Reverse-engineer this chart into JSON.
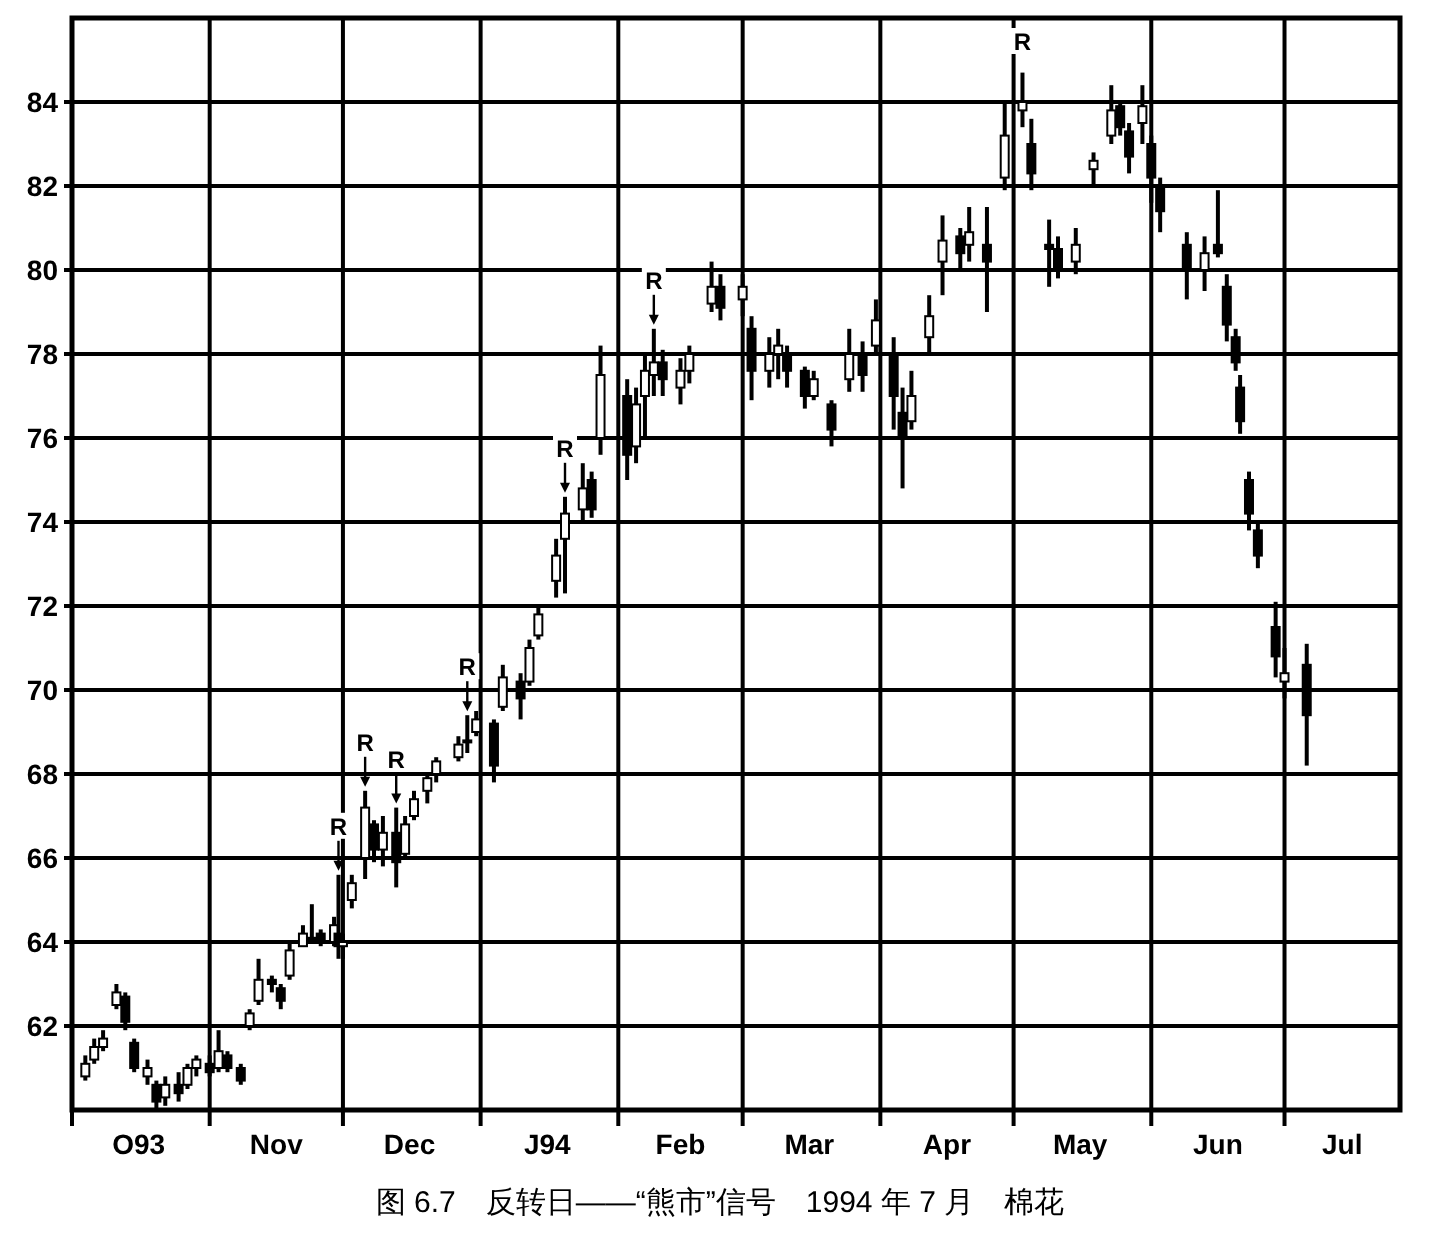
{
  "chart_data": {
    "type": "candlestick",
    "ylim": [
      60,
      86
    ],
    "yticks": [
      62,
      64,
      66,
      68,
      70,
      72,
      74,
      76,
      78,
      80,
      82,
      84
    ],
    "xlim": [
      "1993-10-01",
      "1994-07-27"
    ],
    "xticks": [
      {
        "value": "1993-10-01",
        "label": null
      },
      {
        "value": "1993-10-16",
        "label": "O93"
      },
      {
        "value": "1993-11-01",
        "label": null
      },
      {
        "value": "1993-11-16",
        "label": "Nov"
      },
      {
        "value": "1993-12-01",
        "label": null
      },
      {
        "value": "1993-12-16",
        "label": "Dec"
      },
      {
        "value": "1994-01-01",
        "label": null
      },
      {
        "value": "1994-01-16",
        "label": "J94"
      },
      {
        "value": "1994-02-01",
        "label": null
      },
      {
        "value": "1994-02-15",
        "label": "Feb"
      },
      {
        "value": "1994-03-01",
        "label": null
      },
      {
        "value": "1994-03-16",
        "label": "Mar"
      },
      {
        "value": "1994-04-01",
        "label": null
      },
      {
        "value": "1994-04-16",
        "label": "Apr"
      },
      {
        "value": "1994-05-01",
        "label": null
      },
      {
        "value": "1994-05-16",
        "label": "May"
      },
      {
        "value": "1994-06-01",
        "label": null
      },
      {
        "value": "1994-06-16",
        "label": "Jun"
      },
      {
        "value": "1994-07-01",
        "label": null
      },
      {
        "value": "1994-07-14",
        "label": "Jul"
      }
    ],
    "grid": true,
    "color": "#000000",
    "x": [
      "1993-10-04",
      "1993-10-06",
      "1993-10-08",
      "1993-10-11",
      "1993-10-13",
      "1993-10-15",
      "1993-10-18",
      "1993-10-20",
      "1993-10-22",
      "1993-10-25",
      "1993-10-27",
      "1993-10-29",
      "1993-11-01",
      "1993-11-03",
      "1993-11-05",
      "1993-11-08",
      "1993-11-10",
      "1993-11-12",
      "1993-11-15",
      "1993-11-17",
      "1993-11-19",
      "1993-11-22",
      "1993-11-24",
      "1993-11-26",
      "1993-11-29",
      "1993-11-30",
      "1993-12-01",
      "1993-12-03",
      "1993-12-06",
      "1993-12-08",
      "1993-12-10",
      "1993-12-13",
      "1993-12-15",
      "1993-12-17",
      "1993-12-20",
      "1993-12-22",
      "1993-12-27",
      "1993-12-29",
      "1993-12-31",
      "1994-01-04",
      "1994-01-06",
      "1994-01-10",
      "1994-01-12",
      "1994-01-14",
      "1994-01-18",
      "1994-01-20",
      "1994-01-24",
      "1994-01-26",
      "1994-01-28",
      "1994-02-03",
      "1994-02-05",
      "1994-02-07",
      "1994-02-09",
      "1994-02-11",
      "1994-02-15",
      "1994-02-17",
      "1994-02-22",
      "1994-02-24",
      "1994-03-01",
      "1994-03-03",
      "1994-03-07",
      "1994-03-09",
      "1994-03-11",
      "1994-03-15",
      "1994-03-17",
      "1994-03-21",
      "1994-03-25",
      "1994-03-28",
      "1994-03-31",
      "1994-04-04",
      "1994-04-06",
      "1994-04-08",
      "1994-04-12",
      "1994-04-15",
      "1994-04-19",
      "1994-04-21",
      "1994-04-25",
      "1994-04-29",
      "1994-05-03",
      "1994-05-05",
      "1994-05-09",
      "1994-05-11",
      "1994-05-15",
      "1994-05-19",
      "1994-05-23",
      "1994-05-25",
      "1994-05-27",
      "1994-05-30",
      "1994-06-01",
      "1994-06-03",
      "1994-06-09",
      "1994-06-13",
      "1994-06-16",
      "1994-06-18",
      "1994-06-20",
      "1994-06-21",
      "1994-06-23",
      "1994-06-25",
      "1994-06-29",
      "1994-07-01",
      "1994-07-06"
    ],
    "ohlc": [
      [
        60.8,
        61.3,
        60.7,
        61.1
      ],
      [
        61.2,
        61.7,
        61.1,
        61.5
      ],
      [
        61.5,
        61.9,
        61.4,
        61.7
      ],
      [
        62.5,
        63.0,
        62.4,
        62.8
      ],
      [
        62.7,
        62.8,
        61.9,
        62.1
      ],
      [
        61.6,
        61.7,
        60.9,
        61.0
      ],
      [
        60.8,
        61.2,
        60.6,
        61.0
      ],
      [
        60.6,
        60.7,
        60.0,
        60.2
      ],
      [
        60.3,
        60.8,
        60.1,
        60.6
      ],
      [
        60.6,
        60.9,
        60.2,
        60.4
      ],
      [
        60.6,
        61.1,
        60.5,
        61.0
      ],
      [
        61.0,
        61.3,
        60.8,
        61.2
      ],
      [
        61.1,
        61.3,
        60.8,
        60.9
      ],
      [
        61.0,
        61.9,
        60.9,
        61.4
      ],
      [
        61.3,
        61.4,
        60.9,
        61.0
      ],
      [
        61.0,
        61.1,
        60.6,
        60.7
      ],
      [
        62.0,
        62.4,
        61.9,
        62.3
      ],
      [
        62.6,
        63.6,
        62.5,
        63.1
      ],
      [
        63.1,
        63.2,
        62.8,
        63.0
      ],
      [
        62.9,
        63.0,
        62.4,
        62.6
      ],
      [
        63.2,
        64.0,
        63.1,
        63.8
      ],
      [
        63.9,
        64.4,
        63.9,
        64.2
      ],
      [
        64.1,
        64.9,
        64.0,
        64.1
      ],
      [
        64.2,
        64.3,
        63.9,
        64.0
      ],
      [
        64.0,
        64.6,
        63.9,
        64.4
      ],
      [
        64.2,
        65.6,
        63.6,
        63.9
      ],
      [
        63.9,
        64.2,
        63.6,
        64.0
      ],
      [
        65.0,
        65.6,
        64.8,
        65.4
      ],
      [
        66.0,
        67.6,
        65.5,
        67.2
      ],
      [
        66.8,
        66.9,
        65.9,
        66.2
      ],
      [
        66.2,
        67.0,
        65.8,
        66.6
      ],
      [
        66.6,
        67.2,
        65.3,
        65.9
      ],
      [
        66.1,
        67.0,
        66.0,
        66.8
      ],
      [
        67.0,
        67.6,
        66.9,
        67.4
      ],
      [
        67.6,
        68.0,
        67.3,
        67.9
      ],
      [
        68.0,
        68.4,
        67.8,
        68.3
      ],
      [
        68.4,
        68.9,
        68.3,
        68.7
      ],
      [
        68.8,
        69.4,
        68.5,
        68.8
      ],
      [
        69.0,
        69.5,
        68.9,
        69.3
      ],
      [
        69.2,
        69.3,
        67.8,
        68.2
      ],
      [
        69.6,
        70.6,
        69.5,
        70.3
      ],
      [
        70.2,
        70.4,
        69.3,
        69.8
      ],
      [
        70.2,
        71.2,
        70.1,
        71.0
      ],
      [
        71.3,
        72.0,
        71.2,
        71.8
      ],
      [
        72.6,
        73.6,
        72.2,
        73.2
      ],
      [
        73.6,
        74.6,
        72.3,
        74.2
      ],
      [
        74.3,
        75.4,
        74.0,
        74.8
      ],
      [
        75.0,
        75.2,
        74.1,
        74.3
      ],
      [
        76.0,
        78.2,
        75.6,
        77.5
      ],
      [
        77.0,
        77.4,
        75.0,
        75.6
      ],
      [
        75.8,
        77.2,
        75.4,
        76.8
      ],
      [
        77.0,
        78.0,
        76.0,
        77.6
      ],
      [
        77.5,
        78.6,
        77.0,
        77.8
      ],
      [
        77.8,
        78.1,
        77.0,
        77.4
      ],
      [
        77.2,
        77.9,
        76.8,
        77.6
      ],
      [
        77.6,
        78.2,
        77.3,
        78.0
      ],
      [
        79.2,
        80.2,
        79.0,
        79.6
      ],
      [
        79.6,
        79.9,
        78.8,
        79.1
      ],
      [
        79.3,
        79.9,
        78.9,
        79.6
      ],
      [
        78.6,
        78.9,
        76.9,
        77.6
      ],
      [
        77.6,
        78.4,
        77.2,
        78.0
      ],
      [
        78.0,
        78.6,
        77.4,
        78.2
      ],
      [
        78.0,
        78.2,
        77.2,
        77.6
      ],
      [
        77.6,
        77.7,
        76.7,
        77.0
      ],
      [
        77.0,
        77.6,
        76.9,
        77.4
      ],
      [
        76.8,
        76.9,
        75.8,
        76.2
      ],
      [
        77.4,
        78.6,
        77.1,
        78.0
      ],
      [
        78.0,
        78.3,
        77.1,
        77.5
      ],
      [
        78.2,
        79.3,
        78.0,
        78.8
      ],
      [
        78.0,
        78.4,
        76.2,
        77.0
      ],
      [
        76.6,
        77.2,
        74.8,
        76.0
      ],
      [
        76.4,
        77.6,
        76.2,
        77.0
      ],
      [
        78.4,
        79.4,
        78.0,
        78.9
      ],
      [
        80.2,
        81.3,
        79.4,
        80.7
      ],
      [
        80.8,
        81.0,
        80.0,
        80.4
      ],
      [
        80.6,
        81.5,
        80.2,
        80.9
      ],
      [
        80.6,
        81.5,
        79.0,
        80.2
      ],
      [
        82.2,
        84.0,
        81.9,
        83.2
      ],
      [
        83.8,
        84.7,
        83.4,
        84.0
      ],
      [
        83.0,
        83.6,
        81.9,
        82.3
      ],
      [
        80.6,
        81.2,
        79.6,
        80.5
      ],
      [
        80.5,
        80.8,
        79.8,
        80.0
      ],
      [
        80.2,
        81.0,
        79.9,
        80.6
      ],
      [
        82.4,
        82.8,
        82.0,
        82.6
      ],
      [
        83.2,
        84.4,
        83.0,
        83.8
      ],
      [
        83.9,
        84.0,
        83.2,
        83.4
      ],
      [
        83.3,
        83.5,
        82.3,
        82.7
      ],
      [
        83.5,
        84.4,
        83.0,
        83.9
      ],
      [
        83.0,
        83.2,
        81.6,
        82.2
      ],
      [
        82.0,
        82.2,
        80.9,
        81.4
      ],
      [
        80.6,
        80.9,
        79.3,
        80.0
      ],
      [
        80.0,
        80.8,
        79.5,
        80.4
      ],
      [
        80.6,
        81.9,
        80.3,
        80.4
      ],
      [
        79.6,
        79.9,
        78.3,
        78.7
      ],
      [
        78.4,
        78.6,
        77.6,
        77.8
      ],
      [
        77.2,
        77.5,
        76.1,
        76.4
      ],
      [
        75.0,
        75.2,
        73.8,
        74.2
      ],
      [
        73.8,
        74.0,
        72.9,
        73.2
      ],
      [
        71.5,
        72.1,
        70.3,
        70.8
      ],
      [
        70.2,
        71.0,
        69.8,
        70.4
      ],
      [
        70.6,
        71.1,
        68.2,
        69.4
      ]
    ],
    "annotations": [
      {
        "text": "R",
        "x": "1993-11-30",
        "y": 65.6
      },
      {
        "text": "R",
        "x": "1993-12-06",
        "y": 67.6
      },
      {
        "text": "R",
        "x": "1993-12-13",
        "y": 67.2
      },
      {
        "text": "R",
        "x": "1993-12-29",
        "y": 69.4
      },
      {
        "text": "R",
        "x": "1994-01-20",
        "y": 74.6
      },
      {
        "text": "R",
        "x": "1994-02-09",
        "y": 78.6
      },
      {
        "text": "R",
        "x": "1994-05-03",
        "y": 84.7
      },
      "图 6.7　反转日——“熊市”信号　1994 年 7 月　棉花"
    ]
  }
}
